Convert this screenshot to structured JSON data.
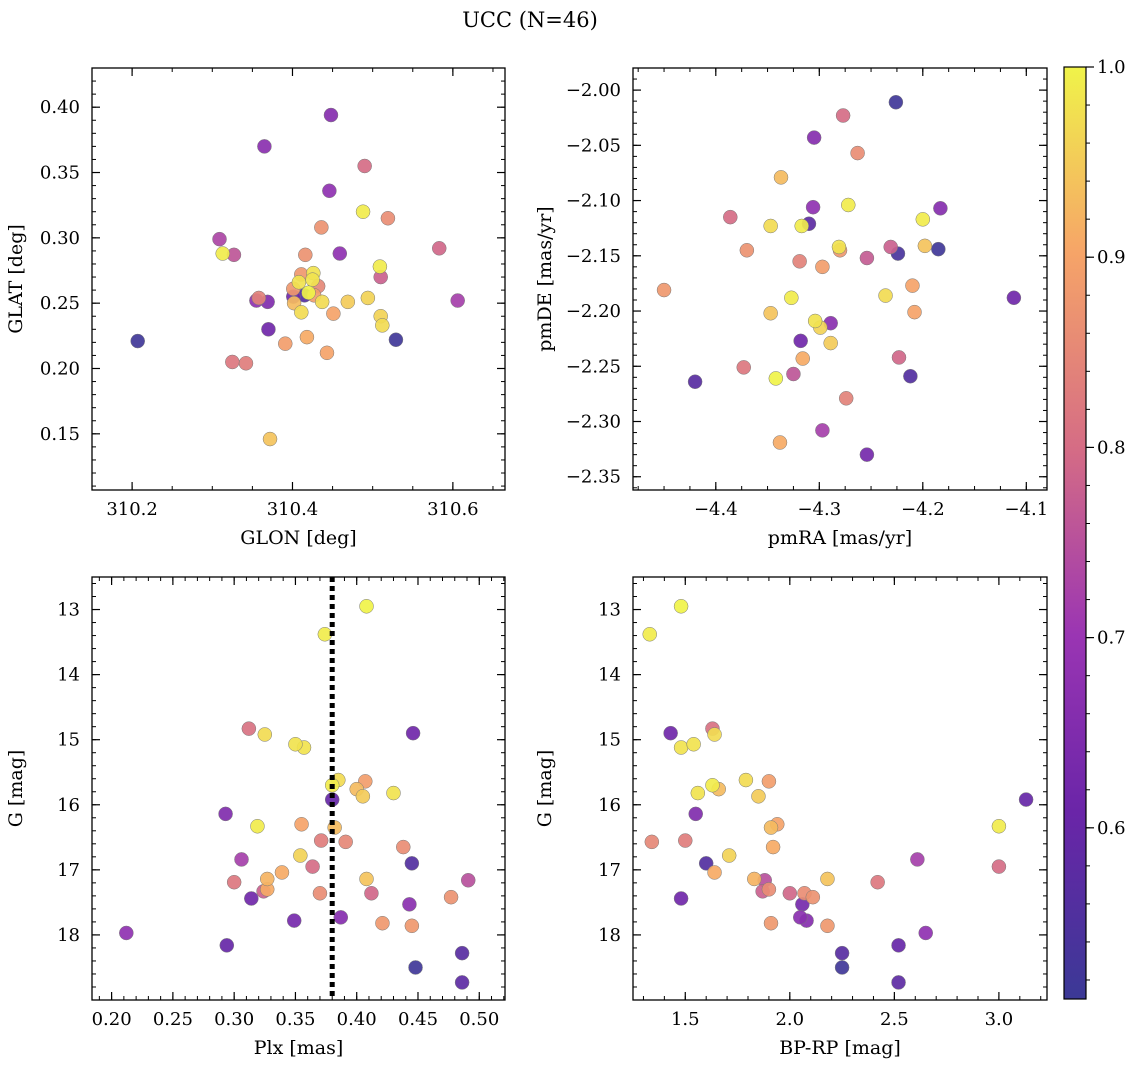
{
  "title": "UCC (N=46)",
  "colorbar": {
    "min": 0.51,
    "max": 1.0,
    "ticks": [
      0.6,
      0.7,
      0.8,
      0.9,
      1.0
    ],
    "tick_labels": [
      "0.6",
      "0.7",
      "0.8",
      "0.9",
      "1.0"
    ],
    "colormap": "plasma"
  },
  "chart_data": [
    {
      "type": "scatter",
      "xlabel": "GLON [deg]",
      "ylabel": "GLAT [deg]",
      "xlim": [
        310.15,
        310.665
      ],
      "ylim": [
        0.107,
        0.43
      ],
      "xticks": [
        310.2,
        310.4,
        310.6
      ],
      "xtick_labels": [
        "310.2",
        "310.4",
        "310.6"
      ],
      "yticks": [
        0.15,
        0.2,
        0.25,
        0.3,
        0.35,
        0.4
      ],
      "ytick_labels": [
        "0.15",
        "0.20",
        "0.25",
        "0.30",
        "0.35",
        "0.40"
      ],
      "points": [
        {
          "x": 310.207,
          "y": 0.221,
          "c": 0.52
        },
        {
          "x": 310.529,
          "y": 0.222,
          "c": 0.52
        },
        {
          "x": 310.415,
          "y": 0.256,
          "c": 0.56
        },
        {
          "x": 310.401,
          "y": 0.255,
          "c": 0.62
        },
        {
          "x": 310.37,
          "y": 0.23,
          "c": 0.62
        },
        {
          "x": 310.369,
          "y": 0.251,
          "c": 0.65
        },
        {
          "x": 310.355,
          "y": 0.252,
          "c": 0.68
        },
        {
          "x": 310.448,
          "y": 0.394,
          "c": 0.66
        },
        {
          "x": 310.365,
          "y": 0.37,
          "c": 0.67
        },
        {
          "x": 310.446,
          "y": 0.336,
          "c": 0.68
        },
        {
          "x": 310.459,
          "y": 0.288,
          "c": 0.68
        },
        {
          "x": 310.309,
          "y": 0.299,
          "c": 0.73
        },
        {
          "x": 310.327,
          "y": 0.287,
          "c": 0.76
        },
        {
          "x": 310.606,
          "y": 0.252,
          "c": 0.72
        },
        {
          "x": 310.51,
          "y": 0.27,
          "c": 0.78
        },
        {
          "x": 310.583,
          "y": 0.292,
          "c": 0.79
        },
        {
          "x": 310.49,
          "y": 0.355,
          "c": 0.8
        },
        {
          "x": 310.325,
          "y": 0.205,
          "c": 0.82
        },
        {
          "x": 310.342,
          "y": 0.204,
          "c": 0.83
        },
        {
          "x": 310.358,
          "y": 0.254,
          "c": 0.84
        },
        {
          "x": 310.432,
          "y": 0.263,
          "c": 0.85
        },
        {
          "x": 310.519,
          "y": 0.315,
          "c": 0.86
        },
        {
          "x": 310.436,
          "y": 0.308,
          "c": 0.87
        },
        {
          "x": 310.416,
          "y": 0.287,
          "c": 0.87
        },
        {
          "x": 310.411,
          "y": 0.272,
          "c": 0.88
        },
        {
          "x": 310.401,
          "y": 0.261,
          "c": 0.88
        },
        {
          "x": 310.427,
          "y": 0.256,
          "c": 0.89
        },
        {
          "x": 310.391,
          "y": 0.219,
          "c": 0.89
        },
        {
          "x": 310.443,
          "y": 0.212,
          "c": 0.9
        },
        {
          "x": 310.451,
          "y": 0.242,
          "c": 0.9
        },
        {
          "x": 310.418,
          "y": 0.224,
          "c": 0.91
        },
        {
          "x": 310.402,
          "y": 0.25,
          "c": 0.93
        },
        {
          "x": 310.372,
          "y": 0.146,
          "c": 0.94
        },
        {
          "x": 310.469,
          "y": 0.251,
          "c": 0.95
        },
        {
          "x": 310.494,
          "y": 0.254,
          "c": 0.96
        },
        {
          "x": 310.51,
          "y": 0.24,
          "c": 0.96
        },
        {
          "x": 310.512,
          "y": 0.233,
          "c": 0.97
        },
        {
          "x": 310.411,
          "y": 0.243,
          "c": 0.97
        },
        {
          "x": 310.437,
          "y": 0.251,
          "c": 0.97
        },
        {
          "x": 310.426,
          "y": 0.273,
          "c": 0.98
        },
        {
          "x": 310.425,
          "y": 0.268,
          "c": 0.98
        },
        {
          "x": 310.408,
          "y": 0.266,
          "c": 0.98
        },
        {
          "x": 310.313,
          "y": 0.288,
          "c": 0.99
        },
        {
          "x": 310.488,
          "y": 0.32,
          "c": 0.99
        },
        {
          "x": 310.509,
          "y": 0.278,
          "c": 0.99
        },
        {
          "x": 310.42,
          "y": 0.258,
          "c": 1.0
        }
      ]
    },
    {
      "type": "scatter",
      "xlabel": "pmRA [mas/yr]",
      "ylabel": "pmDE [mas/yr]",
      "xlim": [
        -4.48,
        -4.08
      ],
      "ylim": [
        -2.362,
        -1.98
      ],
      "xticks": [
        -4.4,
        -4.3,
        -4.2,
        -4.1
      ],
      "xtick_labels": [
        "−4.4",
        "−4.3",
        "−4.2",
        "−4.1"
      ],
      "yticks": [
        -2.35,
        -2.3,
        -2.25,
        -2.2,
        -2.15,
        -2.1,
        -2.05,
        -2.0
      ],
      "ytick_labels": [
        "−2.35",
        "−2.30",
        "−2.25",
        "−2.20",
        "−2.15",
        "−2.10",
        "−2.05",
        "−2.00"
      ],
      "points": [
        {
          "x": -4.226,
          "y": -2.011,
          "c": 0.52
        },
        {
          "x": -4.185,
          "y": -2.144,
          "c": 0.52
        },
        {
          "x": -4.224,
          "y": -2.148,
          "c": 0.54
        },
        {
          "x": -4.212,
          "y": -2.259,
          "c": 0.56
        },
        {
          "x": -4.42,
          "y": -2.264,
          "c": 0.57
        },
        {
          "x": -4.31,
          "y": -2.121,
          "c": 0.58
        },
        {
          "x": -4.318,
          "y": -2.227,
          "c": 0.62
        },
        {
          "x": -4.112,
          "y": -2.188,
          "c": 0.62
        },
        {
          "x": -4.254,
          "y": -2.33,
          "c": 0.63
        },
        {
          "x": -4.305,
          "y": -2.043,
          "c": 0.66
        },
        {
          "x": -4.183,
          "y": -2.107,
          "c": 0.66
        },
        {
          "x": -4.289,
          "y": -2.211,
          "c": 0.67
        },
        {
          "x": -4.306,
          "y": -2.106,
          "c": 0.68
        },
        {
          "x": -4.297,
          "y": -2.308,
          "c": 0.72
        },
        {
          "x": -4.325,
          "y": -2.257,
          "c": 0.76
        },
        {
          "x": -4.254,
          "y": -2.152,
          "c": 0.77
        },
        {
          "x": -4.231,
          "y": -2.142,
          "c": 0.78
        },
        {
          "x": -4.223,
          "y": -2.242,
          "c": 0.79
        },
        {
          "x": -4.277,
          "y": -2.023,
          "c": 0.8
        },
        {
          "x": -4.386,
          "y": -2.115,
          "c": 0.8
        },
        {
          "x": -4.373,
          "y": -2.251,
          "c": 0.82
        },
        {
          "x": -4.274,
          "y": -2.279,
          "c": 0.84
        },
        {
          "x": -4.319,
          "y": -2.155,
          "c": 0.84
        },
        {
          "x": -4.263,
          "y": -2.057,
          "c": 0.86
        },
        {
          "x": -4.37,
          "y": -2.145,
          "c": 0.87
        },
        {
          "x": -4.28,
          "y": -2.145,
          "c": 0.88
        },
        {
          "x": -4.45,
          "y": -2.181,
          "c": 0.88
        },
        {
          "x": -4.297,
          "y": -2.16,
          "c": 0.89
        },
        {
          "x": -4.21,
          "y": -2.177,
          "c": 0.9
        },
        {
          "x": -4.208,
          "y": -2.201,
          "c": 0.9
        },
        {
          "x": -4.338,
          "y": -2.319,
          "c": 0.91
        },
        {
          "x": -4.316,
          "y": -2.243,
          "c": 0.91
        },
        {
          "x": -4.337,
          "y": -2.079,
          "c": 0.93
        },
        {
          "x": -4.347,
          "y": -2.202,
          "c": 0.94
        },
        {
          "x": -4.198,
          "y": -2.141,
          "c": 0.94
        },
        {
          "x": -4.289,
          "y": -2.229,
          "c": 0.95
        },
        {
          "x": -4.299,
          "y": -2.215,
          "c": 0.96
        },
        {
          "x": -4.236,
          "y": -2.186,
          "c": 0.97
        },
        {
          "x": -4.347,
          "y": -2.123,
          "c": 0.97
        },
        {
          "x": -4.281,
          "y": -2.142,
          "c": 0.98
        },
        {
          "x": -4.304,
          "y": -2.209,
          "c": 0.98
        },
        {
          "x": -4.272,
          "y": -2.104,
          "c": 0.99
        },
        {
          "x": -4.2,
          "y": -2.117,
          "c": 0.99
        },
        {
          "x": -4.317,
          "y": -2.123,
          "c": 0.99
        },
        {
          "x": -4.327,
          "y": -2.188,
          "c": 0.99
        },
        {
          "x": -4.342,
          "y": -2.261,
          "c": 1.0
        }
      ]
    },
    {
      "type": "scatter",
      "xlabel": "Plx [mas]",
      "ylabel": "G [mag]",
      "xlim": [
        0.184,
        0.521
      ],
      "ylim": [
        19.0,
        12.5
      ],
      "y_inverted": true,
      "reference_line_x": 0.38,
      "xticks": [
        0.2,
        0.25,
        0.3,
        0.35,
        0.4,
        0.45,
        0.5
      ],
      "xtick_labels": [
        "0.20",
        "0.25",
        "0.30",
        "0.35",
        "0.40",
        "0.45",
        "0.50"
      ],
      "yticks": [
        13,
        14,
        15,
        16,
        17,
        18
      ],
      "ytick_labels": [
        "13",
        "14",
        "15",
        "16",
        "17",
        "18"
      ],
      "points": [
        {
          "x": 0.448,
          "y": 18.5,
          "c": 0.52
        },
        {
          "x": 0.445,
          "y": 16.9,
          "c": 0.56
        },
        {
          "x": 0.486,
          "y": 18.28,
          "c": 0.57
        },
        {
          "x": 0.486,
          "y": 18.73,
          "c": 0.58
        },
        {
          "x": 0.294,
          "y": 18.16,
          "c": 0.6
        },
        {
          "x": 0.38,
          "y": 15.92,
          "c": 0.6
        },
        {
          "x": 0.446,
          "y": 14.9,
          "c": 0.62
        },
        {
          "x": 0.314,
          "y": 17.44,
          "c": 0.62
        },
        {
          "x": 0.349,
          "y": 17.78,
          "c": 0.63
        },
        {
          "x": 0.293,
          "y": 16.14,
          "c": 0.65
        },
        {
          "x": 0.387,
          "y": 17.73,
          "c": 0.66
        },
        {
          "x": 0.443,
          "y": 17.53,
          "c": 0.67
        },
        {
          "x": 0.212,
          "y": 17.97,
          "c": 0.68
        },
        {
          "x": 0.306,
          "y": 16.84,
          "c": 0.72
        },
        {
          "x": 0.491,
          "y": 17.16,
          "c": 0.75
        },
        {
          "x": 0.324,
          "y": 17.33,
          "c": 0.78
        },
        {
          "x": 0.412,
          "y": 17.36,
          "c": 0.79
        },
        {
          "x": 0.364,
          "y": 16.95,
          "c": 0.8
        },
        {
          "x": 0.312,
          "y": 14.83,
          "c": 0.81
        },
        {
          "x": 0.3,
          "y": 17.19,
          "c": 0.82
        },
        {
          "x": 0.371,
          "y": 16.55,
          "c": 0.83
        },
        {
          "x": 0.391,
          "y": 16.57,
          "c": 0.85
        },
        {
          "x": 0.37,
          "y": 17.36,
          "c": 0.86
        },
        {
          "x": 0.438,
          "y": 16.65,
          "c": 0.86
        },
        {
          "x": 0.477,
          "y": 17.42,
          "c": 0.87
        },
        {
          "x": 0.445,
          "y": 17.86,
          "c": 0.88
        },
        {
          "x": 0.421,
          "y": 17.82,
          "c": 0.88
        },
        {
          "x": 0.407,
          "y": 15.64,
          "c": 0.89
        },
        {
          "x": 0.355,
          "y": 16.3,
          "c": 0.9
        },
        {
          "x": 0.339,
          "y": 17.04,
          "c": 0.91
        },
        {
          "x": 0.327,
          "y": 17.3,
          "c": 0.91
        },
        {
          "x": 0.327,
          "y": 17.14,
          "c": 0.92
        },
        {
          "x": 0.4,
          "y": 15.76,
          "c": 0.93
        },
        {
          "x": 0.382,
          "y": 16.35,
          "c": 0.93
        },
        {
          "x": 0.408,
          "y": 17.14,
          "c": 0.94
        },
        {
          "x": 0.405,
          "y": 15.87,
          "c": 0.95
        },
        {
          "x": 0.354,
          "y": 16.78,
          "c": 0.96
        },
        {
          "x": 0.325,
          "y": 14.92,
          "c": 0.97
        },
        {
          "x": 0.385,
          "y": 15.62,
          "c": 0.97
        },
        {
          "x": 0.43,
          "y": 15.82,
          "c": 0.98
        },
        {
          "x": 0.357,
          "y": 15.12,
          "c": 0.98
        },
        {
          "x": 0.35,
          "y": 15.07,
          "c": 0.98
        },
        {
          "x": 0.319,
          "y": 16.33,
          "c": 0.99
        },
        {
          "x": 0.38,
          "y": 15.7,
          "c": 0.99
        },
        {
          "x": 0.374,
          "y": 13.38,
          "c": 0.99
        },
        {
          "x": 0.408,
          "y": 12.95,
          "c": 1.0
        }
      ]
    },
    {
      "type": "scatter",
      "xlabel": "BP-RP [mag]",
      "ylabel": "G [mag]",
      "xlim": [
        1.25,
        3.23
      ],
      "ylim": [
        19.0,
        12.5
      ],
      "y_inverted": true,
      "xticks": [
        1.5,
        2.0,
        2.5,
        3.0
      ],
      "xtick_labels": [
        "1.5",
        "2.0",
        "2.5",
        "3.0"
      ],
      "yticks": [
        13,
        14,
        15,
        16,
        17,
        18
      ],
      "ytick_labels": [
        "13",
        "14",
        "15",
        "16",
        "17",
        "18"
      ],
      "points": [
        {
          "x": 2.25,
          "y": 18.5,
          "c": 0.52
        },
        {
          "x": 1.6,
          "y": 16.9,
          "c": 0.56
        },
        {
          "x": 2.25,
          "y": 18.28,
          "c": 0.57
        },
        {
          "x": 2.52,
          "y": 18.73,
          "c": 0.58
        },
        {
          "x": 2.52,
          "y": 18.16,
          "c": 0.6
        },
        {
          "x": 3.13,
          "y": 15.92,
          "c": 0.6
        },
        {
          "x": 1.43,
          "y": 14.9,
          "c": 0.62
        },
        {
          "x": 1.48,
          "y": 17.44,
          "c": 0.62
        },
        {
          "x": 2.06,
          "y": 17.53,
          "c": 0.63
        },
        {
          "x": 1.55,
          "y": 16.14,
          "c": 0.65
        },
        {
          "x": 2.08,
          "y": 17.78,
          "c": 0.66
        },
        {
          "x": 2.05,
          "y": 17.73,
          "c": 0.67
        },
        {
          "x": 2.65,
          "y": 17.97,
          "c": 0.68
        },
        {
          "x": 2.61,
          "y": 16.84,
          "c": 0.72
        },
        {
          "x": 1.88,
          "y": 17.16,
          "c": 0.75
        },
        {
          "x": 1.87,
          "y": 17.33,
          "c": 0.78
        },
        {
          "x": 2.0,
          "y": 17.36,
          "c": 0.79
        },
        {
          "x": 3.0,
          "y": 16.95,
          "c": 0.8
        },
        {
          "x": 1.63,
          "y": 14.83,
          "c": 0.81
        },
        {
          "x": 2.42,
          "y": 17.19,
          "c": 0.82
        },
        {
          "x": 1.5,
          "y": 16.55,
          "c": 0.83
        },
        {
          "x": 1.34,
          "y": 16.57,
          "c": 0.85
        },
        {
          "x": 2.07,
          "y": 17.36,
          "c": 0.86
        },
        {
          "x": 1.9,
          "y": 17.3,
          "c": 0.86
        },
        {
          "x": 2.11,
          "y": 17.42,
          "c": 0.87
        },
        {
          "x": 2.18,
          "y": 17.86,
          "c": 0.88
        },
        {
          "x": 1.91,
          "y": 17.82,
          "c": 0.88
        },
        {
          "x": 1.9,
          "y": 15.64,
          "c": 0.89
        },
        {
          "x": 1.94,
          "y": 16.3,
          "c": 0.9
        },
        {
          "x": 1.64,
          "y": 17.04,
          "c": 0.91
        },
        {
          "x": 1.92,
          "y": 16.65,
          "c": 0.91
        },
        {
          "x": 1.83,
          "y": 17.14,
          "c": 0.92
        },
        {
          "x": 1.66,
          "y": 15.76,
          "c": 0.93
        },
        {
          "x": 1.91,
          "y": 16.35,
          "c": 0.93
        },
        {
          "x": 2.18,
          "y": 17.14,
          "c": 0.94
        },
        {
          "x": 1.85,
          "y": 15.87,
          "c": 0.95
        },
        {
          "x": 1.71,
          "y": 16.78,
          "c": 0.96
        },
        {
          "x": 1.64,
          "y": 14.92,
          "c": 0.97
        },
        {
          "x": 1.79,
          "y": 15.62,
          "c": 0.97
        },
        {
          "x": 1.56,
          "y": 15.82,
          "c": 0.98
        },
        {
          "x": 1.48,
          "y": 15.12,
          "c": 0.98
        },
        {
          "x": 1.54,
          "y": 15.07,
          "c": 0.98
        },
        {
          "x": 3.0,
          "y": 16.33,
          "c": 0.99
        },
        {
          "x": 1.63,
          "y": 15.7,
          "c": 0.99
        },
        {
          "x": 1.33,
          "y": 13.38,
          "c": 0.99
        },
        {
          "x": 1.48,
          "y": 12.95,
          "c": 1.0
        }
      ]
    }
  ]
}
